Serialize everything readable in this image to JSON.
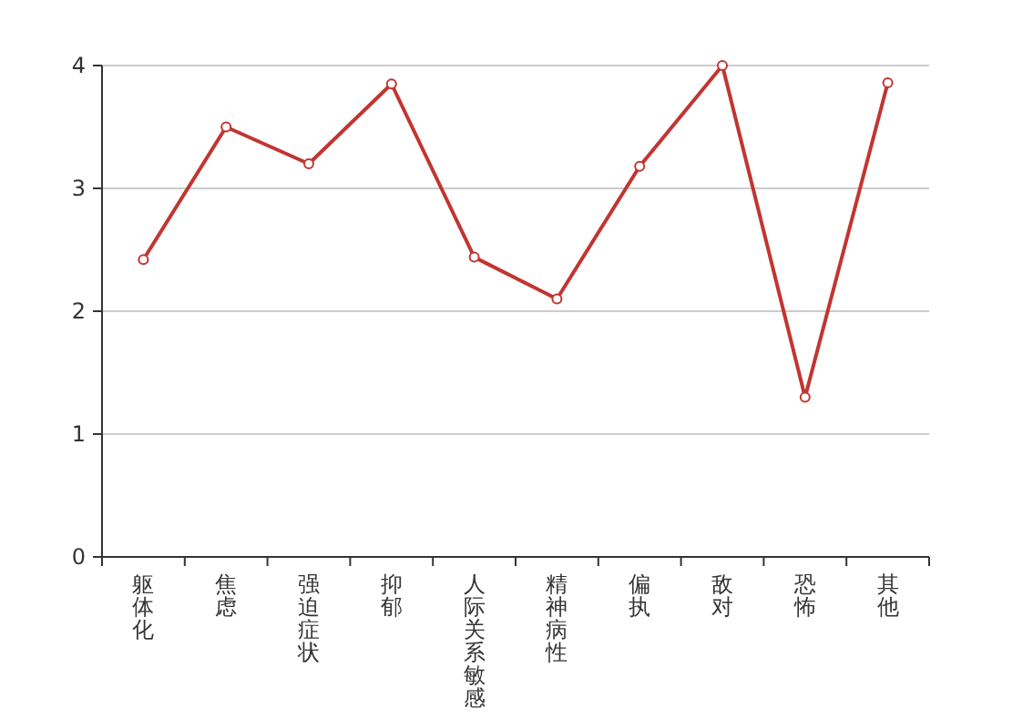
{
  "chart_data": {
    "type": "line",
    "categories": [
      "躯体化",
      "焦虑",
      "强迫症状",
      "抑郁",
      "人际关系敏感",
      "精神病性",
      "偏执",
      "敌对",
      "恐怖",
      "其他"
    ],
    "values": [
      2.42,
      3.5,
      3.2,
      3.85,
      2.44,
      2.1,
      3.18,
      4.0,
      1.3,
      3.86
    ],
    "color": "#c23531",
    "ylim": [
      0,
      4
    ],
    "yticks": [
      0,
      1,
      2,
      3,
      4
    ],
    "grid": "y",
    "marker": "circle",
    "line_style": "solid"
  }
}
